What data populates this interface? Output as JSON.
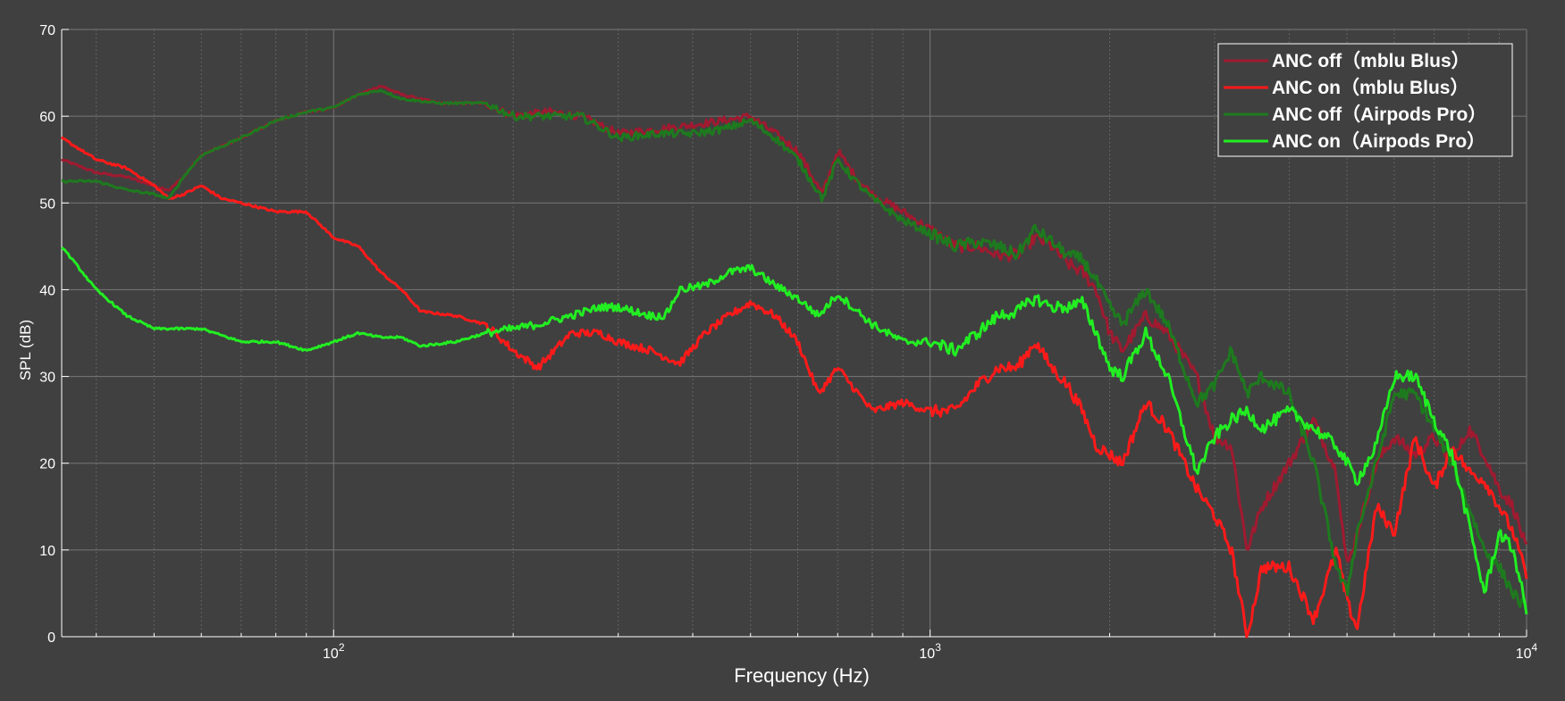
{
  "chart_data": {
    "type": "line",
    "title": "",
    "xlabel": "Frequency (Hz)",
    "ylabel": "SPL (dB)",
    "xscale": "log",
    "xlim": [
      35,
      10000
    ],
    "ylim": [
      0,
      70
    ],
    "grid": true,
    "minor_grid": true,
    "legend_position": "top-right",
    "background_color": "#404040",
    "y_ticks": [
      0,
      10,
      20,
      30,
      40,
      50,
      60,
      70
    ],
    "x_ticks": [
      {
        "value": 100,
        "base": "10",
        "exp": "2"
      },
      {
        "value": 1000,
        "base": "10",
        "exp": "3"
      },
      {
        "value": 10000,
        "base": "10",
        "exp": "4"
      }
    ],
    "series": [
      {
        "name": "ANC off（mblu Blus）",
        "color": "#a01a30",
        "points": [
          [
            35,
            55
          ],
          [
            40,
            53.5
          ],
          [
            45,
            53
          ],
          [
            50,
            52
          ],
          [
            53,
            51.5
          ],
          [
            56,
            53
          ],
          [
            60,
            55.5
          ],
          [
            70,
            57.5
          ],
          [
            80,
            59.5
          ],
          [
            90,
            60.5
          ],
          [
            100,
            61
          ],
          [
            110,
            62.5
          ],
          [
            120,
            63.5
          ],
          [
            130,
            62.5
          ],
          [
            150,
            61.5
          ],
          [
            180,
            61.5
          ],
          [
            200,
            60
          ],
          [
            230,
            60.5
          ],
          [
            260,
            60
          ],
          [
            300,
            58
          ],
          [
            350,
            58.5
          ],
          [
            400,
            59
          ],
          [
            450,
            59.5
          ],
          [
            500,
            60
          ],
          [
            550,
            58
          ],
          [
            600,
            56
          ],
          [
            660,
            51
          ],
          [
            700,
            56
          ],
          [
            750,
            53
          ],
          [
            800,
            51
          ],
          [
            900,
            49
          ],
          [
            1000,
            47
          ],
          [
            1100,
            45
          ],
          [
            1200,
            45
          ],
          [
            1300,
            44
          ],
          [
            1400,
            44
          ],
          [
            1500,
            46
          ],
          [
            1600,
            45
          ],
          [
            1700,
            43
          ],
          [
            1800,
            42
          ],
          [
            1900,
            40
          ],
          [
            2000,
            35
          ],
          [
            2100,
            33
          ],
          [
            2300,
            37
          ],
          [
            2500,
            35
          ],
          [
            2800,
            30
          ],
          [
            3000,
            23
          ],
          [
            3200,
            22
          ],
          [
            3400,
            10
          ],
          [
            3600,
            15
          ],
          [
            4000,
            20
          ],
          [
            4400,
            25
          ],
          [
            4800,
            19
          ],
          [
            5000,
            8
          ],
          [
            5200,
            12
          ],
          [
            5600,
            20
          ],
          [
            6000,
            23
          ],
          [
            6500,
            21
          ],
          [
            7000,
            23
          ],
          [
            7500,
            20
          ],
          [
            8000,
            24
          ],
          [
            8500,
            21
          ],
          [
            9000,
            17
          ],
          [
            9500,
            15
          ],
          [
            10000,
            10
          ]
        ]
      },
      {
        "name": "ANC on（mblu Blus）",
        "color": "#ff1a1a",
        "points": [
          [
            35,
            57.5
          ],
          [
            40,
            55
          ],
          [
            45,
            54
          ],
          [
            50,
            52
          ],
          [
            53,
            50.5
          ],
          [
            56,
            51
          ],
          [
            60,
            52
          ],
          [
            65,
            50.5
          ],
          [
            70,
            50
          ],
          [
            80,
            49
          ],
          [
            90,
            49
          ],
          [
            100,
            46
          ],
          [
            110,
            45
          ],
          [
            120,
            42
          ],
          [
            130,
            40
          ],
          [
            140,
            37.5
          ],
          [
            160,
            37
          ],
          [
            180,
            36
          ],
          [
            200,
            33
          ],
          [
            220,
            31
          ],
          [
            250,
            35
          ],
          [
            280,
            35
          ],
          [
            300,
            34
          ],
          [
            340,
            33
          ],
          [
            380,
            31.5
          ],
          [
            420,
            35
          ],
          [
            460,
            37
          ],
          [
            500,
            38.5
          ],
          [
            550,
            37
          ],
          [
            600,
            34
          ],
          [
            650,
            28
          ],
          [
            700,
            31
          ],
          [
            800,
            26
          ],
          [
            900,
            27
          ],
          [
            1000,
            26
          ],
          [
            1100,
            26
          ],
          [
            1200,
            29
          ],
          [
            1300,
            31
          ],
          [
            1400,
            31
          ],
          [
            1500,
            34
          ],
          [
            1600,
            31
          ],
          [
            1700,
            29
          ],
          [
            1800,
            26
          ],
          [
            1900,
            22
          ],
          [
            2000,
            21
          ],
          [
            2100,
            20
          ],
          [
            2300,
            27
          ],
          [
            2500,
            24
          ],
          [
            2800,
            17
          ],
          [
            3000,
            14
          ],
          [
            3200,
            10
          ],
          [
            3400,
            0
          ],
          [
            3600,
            8
          ],
          [
            4000,
            8
          ],
          [
            4400,
            2
          ],
          [
            4800,
            10
          ],
          [
            5000,
            4
          ],
          [
            5200,
            1
          ],
          [
            5600,
            15
          ],
          [
            6000,
            12
          ],
          [
            6500,
            23
          ],
          [
            7000,
            17
          ],
          [
            7500,
            22
          ],
          [
            8000,
            19
          ],
          [
            8500,
            18
          ],
          [
            9000,
            15
          ],
          [
            9500,
            12
          ],
          [
            10000,
            7
          ]
        ]
      },
      {
        "name": "ANC off（Airpods Pro）",
        "color": "#1e7a1e",
        "points": [
          [
            35,
            52.5
          ],
          [
            40,
            52.5
          ],
          [
            45,
            51.5
          ],
          [
            50,
            51
          ],
          [
            53,
            50.5
          ],
          [
            56,
            53
          ],
          [
            60,
            55.5
          ],
          [
            70,
            57.5
          ],
          [
            80,
            59.5
          ],
          [
            90,
            60.5
          ],
          [
            100,
            61
          ],
          [
            110,
            62.5
          ],
          [
            120,
            63
          ],
          [
            130,
            62
          ],
          [
            150,
            61.5
          ],
          [
            180,
            61.5
          ],
          [
            200,
            60
          ],
          [
            230,
            60
          ],
          [
            260,
            60
          ],
          [
            300,
            57.5
          ],
          [
            350,
            58
          ],
          [
            400,
            58
          ],
          [
            450,
            58.5
          ],
          [
            500,
            59.5
          ],
          [
            550,
            57.5
          ],
          [
            600,
            55
          ],
          [
            660,
            50.5
          ],
          [
            700,
            55
          ],
          [
            750,
            52.5
          ],
          [
            800,
            50.5
          ],
          [
            900,
            48
          ],
          [
            1000,
            46.5
          ],
          [
            1100,
            45
          ],
          [
            1200,
            45.5
          ],
          [
            1300,
            45
          ],
          [
            1400,
            44
          ],
          [
            1500,
            47
          ],
          [
            1600,
            45.5
          ],
          [
            1700,
            44
          ],
          [
            1800,
            43.5
          ],
          [
            1900,
            41
          ],
          [
            2000,
            38
          ],
          [
            2100,
            36
          ],
          [
            2300,
            40
          ],
          [
            2500,
            36
          ],
          [
            2800,
            27
          ],
          [
            3000,
            29
          ],
          [
            3200,
            33
          ],
          [
            3400,
            28
          ],
          [
            3600,
            30
          ],
          [
            4000,
            28
          ],
          [
            4400,
            20
          ],
          [
            4800,
            8
          ],
          [
            5000,
            5
          ],
          [
            5200,
            12
          ],
          [
            5600,
            20
          ],
          [
            6000,
            28
          ],
          [
            6500,
            28
          ],
          [
            7000,
            24
          ],
          [
            7500,
            20
          ],
          [
            8000,
            15
          ],
          [
            8500,
            10
          ],
          [
            9000,
            8
          ],
          [
            9500,
            5
          ],
          [
            10000,
            3
          ]
        ]
      },
      {
        "name": "ANC on（Airpods Pro）",
        "color": "#22ee22",
        "points": [
          [
            35,
            45
          ],
          [
            40,
            40
          ],
          [
            45,
            37
          ],
          [
            50,
            35.5
          ],
          [
            55,
            35.5
          ],
          [
            60,
            35.5
          ],
          [
            70,
            34
          ],
          [
            80,
            34
          ],
          [
            90,
            33
          ],
          [
            100,
            34
          ],
          [
            110,
            35
          ],
          [
            120,
            34.5
          ],
          [
            130,
            34.5
          ],
          [
            140,
            33.5
          ],
          [
            160,
            34
          ],
          [
            180,
            35
          ],
          [
            200,
            35.5
          ],
          [
            220,
            36
          ],
          [
            250,
            37
          ],
          [
            280,
            38
          ],
          [
            300,
            38
          ],
          [
            340,
            37
          ],
          [
            360,
            37
          ],
          [
            380,
            40
          ],
          [
            420,
            40.5
          ],
          [
            460,
            42
          ],
          [
            500,
            42.5
          ],
          [
            550,
            40.5
          ],
          [
            600,
            39
          ],
          [
            650,
            37
          ],
          [
            700,
            39.5
          ],
          [
            800,
            36
          ],
          [
            900,
            34
          ],
          [
            1000,
            34
          ],
          [
            1100,
            33
          ],
          [
            1200,
            35
          ],
          [
            1300,
            37
          ],
          [
            1400,
            37.5
          ],
          [
            1500,
            39
          ],
          [
            1600,
            38
          ],
          [
            1700,
            38
          ],
          [
            1800,
            38.5
          ],
          [
            1900,
            35
          ],
          [
            2000,
            31
          ],
          [
            2100,
            30
          ],
          [
            2300,
            35
          ],
          [
            2500,
            30
          ],
          [
            2800,
            19
          ],
          [
            3000,
            23
          ],
          [
            3200,
            25
          ],
          [
            3400,
            26
          ],
          [
            3600,
            24
          ],
          [
            4000,
            26
          ],
          [
            4400,
            24
          ],
          [
            4800,
            22
          ],
          [
            5000,
            20
          ],
          [
            5200,
            18
          ],
          [
            5600,
            22
          ],
          [
            6000,
            30
          ],
          [
            6500,
            30
          ],
          [
            7000,
            25
          ],
          [
            7500,
            21
          ],
          [
            8000,
            13
          ],
          [
            8500,
            5
          ],
          [
            9000,
            12
          ],
          [
            9500,
            10
          ],
          [
            10000,
            3
          ]
        ]
      }
    ]
  }
}
